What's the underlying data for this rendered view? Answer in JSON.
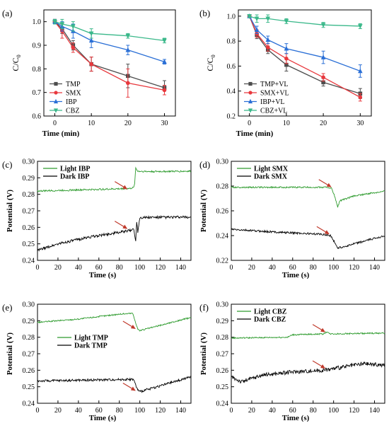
{
  "chart_data": [
    {
      "id": "a",
      "type": "line",
      "panel_label": "(a)",
      "xlabel": "Time (min)",
      "ylabel": "C/C",
      "ylabel_sub": "0",
      "xlim": [
        -3,
        33
      ],
      "ylim": [
        0.6,
        1.05
      ],
      "xticks": [
        0,
        10,
        20,
        30
      ],
      "yticks": [
        0.6,
        0.7,
        0.8,
        0.9,
        1.0
      ],
      "ytick_labels": [
        "0.6",
        "0.7",
        "0.8",
        "0.9",
        "1.0"
      ],
      "x": [
        0,
        2,
        5,
        10,
        20,
        30
      ],
      "legend_position": "bottom-left",
      "series": [
        {
          "name": "TMP",
          "color": "#4d4d4d",
          "marker": "square",
          "values": [
            1.0,
            0.97,
            0.9,
            0.82,
            0.77,
            0.72
          ],
          "errors": [
            0.01,
            0.02,
            0.02,
            0.03,
            0.05,
            0.03
          ]
        },
        {
          "name": "SMX",
          "color": "#e8383d",
          "marker": "circle",
          "values": [
            1.0,
            0.96,
            0.89,
            0.82,
            0.74,
            0.71
          ],
          "errors": [
            0.01,
            0.03,
            0.02,
            0.03,
            0.06,
            0.02
          ]
        },
        {
          "name": "IBP",
          "color": "#2a6fd6",
          "marker": "triangle-up",
          "values": [
            1.0,
            0.98,
            0.96,
            0.92,
            0.88,
            0.83
          ],
          "errors": [
            0.01,
            0.02,
            0.03,
            0.03,
            0.02,
            0.01
          ]
        },
        {
          "name": "CBZ",
          "color": "#3ab88a",
          "marker": "triangle-down",
          "values": [
            1.0,
            0.99,
            0.98,
            0.95,
            0.94,
            0.92
          ],
          "errors": [
            0.01,
            0.02,
            0.02,
            0.02,
            0.01,
            0.01
          ]
        }
      ]
    },
    {
      "id": "b",
      "type": "line",
      "panel_label": "(b)",
      "xlabel": "Time (min)",
      "ylabel": "C/C",
      "ylabel_sub": "0",
      "xlim": [
        -3,
        33
      ],
      "ylim": [
        0.2,
        1.05
      ],
      "xticks": [
        0,
        10,
        20,
        30
      ],
      "yticks": [
        0.2,
        0.4,
        0.6,
        0.8,
        1.0
      ],
      "ytick_labels": [
        "0.2",
        "0.4",
        "0.6",
        "0.8",
        "1.0"
      ],
      "x": [
        0,
        2,
        5,
        10,
        20,
        30
      ],
      "legend_position": "bottom-left",
      "series": [
        {
          "name": "TMP+VL",
          "color": "#4d4d4d",
          "marker": "square",
          "values": [
            1.0,
            0.85,
            0.73,
            0.61,
            0.47,
            0.38
          ],
          "errors": [
            0.01,
            0.03,
            0.03,
            0.05,
            0.03,
            0.04
          ]
        },
        {
          "name": "SMX+VL",
          "color": "#e8383d",
          "marker": "circle",
          "values": [
            1.0,
            0.86,
            0.75,
            0.66,
            0.51,
            0.35
          ],
          "errors": [
            0.01,
            0.03,
            0.03,
            0.04,
            0.03,
            0.03
          ]
        },
        {
          "name": "IBP+VL",
          "color": "#2a6fd6",
          "marker": "triangle-up",
          "values": [
            1.0,
            0.89,
            0.81,
            0.74,
            0.67,
            0.56
          ],
          "errors": [
            0.01,
            0.03,
            0.03,
            0.04,
            0.05,
            0.05
          ]
        },
        {
          "name": "CBZ+VL",
          "color": "#3ab88a",
          "marker": "triangle-down",
          "values": [
            1.0,
            0.98,
            0.98,
            0.96,
            0.93,
            0.92
          ],
          "errors": [
            0.01,
            0.03,
            0.03,
            0.02,
            0.02,
            0.02
          ]
        }
      ]
    },
    {
      "id": "c",
      "type": "line",
      "panel_label": "(c)",
      "xlabel": "Time (s)",
      "ylabel": "Potential (V)",
      "xlim": [
        0,
        150
      ],
      "ylim": [
        0.24,
        0.3
      ],
      "xticks": [
        0,
        20,
        40,
        60,
        80,
        100,
        120,
        140
      ],
      "yticks": [
        0.24,
        0.25,
        0.26,
        0.27,
        0.28,
        0.29,
        0.3
      ],
      "ytick_labels": [
        "0.24",
        "0.25",
        "0.26",
        "0.27",
        "0.28",
        "0.29",
        "0.30"
      ],
      "legend_position": "top-left",
      "series": [
        {
          "name": "Light IBP",
          "color": "#2e9b2e",
          "noise": 0.0005,
          "points": [
            [
              0,
              0.282
            ],
            [
              90,
              0.2835
            ],
            [
              94,
              0.284
            ],
            [
              95,
              0.287
            ],
            [
              96,
              0.296
            ],
            [
              98,
              0.294
            ],
            [
              110,
              0.2938
            ],
            [
              150,
              0.294
            ]
          ]
        },
        {
          "name": "Dark IBP",
          "color": "#000000",
          "noise": 0.0008,
          "points": [
            [
              0,
              0.246
            ],
            [
              20,
              0.25
            ],
            [
              50,
              0.254
            ],
            [
              90,
              0.258
            ],
            [
              94,
              0.259
            ],
            [
              96,
              0.252
            ],
            [
              97,
              0.264
            ],
            [
              98,
              0.257
            ],
            [
              100,
              0.266
            ],
            [
              150,
              0.2662
            ]
          ]
        }
      ],
      "arrows": [
        [
          88,
          0.283
        ],
        [
          88,
          0.259
        ]
      ]
    },
    {
      "id": "d",
      "type": "line",
      "panel_label": "(d)",
      "xlabel": "Time (s)",
      "ylabel": "Potential (V)",
      "xlim": [
        0,
        150
      ],
      "ylim": [
        0.22,
        0.3
      ],
      "xticks": [
        0,
        20,
        40,
        60,
        80,
        100,
        120,
        140
      ],
      "yticks": [
        0.22,
        0.24,
        0.26,
        0.28,
        0.3
      ],
      "ytick_labels": [
        "0.22",
        "0.24",
        "0.26",
        "0.28",
        "0.30"
      ],
      "legend_position": "top-left",
      "series": [
        {
          "name": "Light SMX",
          "color": "#2e9b2e",
          "noise": 0.0006,
          "points": [
            [
              0,
              0.279
            ],
            [
              95,
              0.279
            ],
            [
              98,
              0.278
            ],
            [
              101,
              0.272
            ],
            [
              104,
              0.263
            ],
            [
              106,
              0.268
            ],
            [
              120,
              0.272
            ],
            [
              150,
              0.276
            ]
          ]
        },
        {
          "name": "Dark SMX",
          "color": "#000000",
          "noise": 0.0008,
          "points": [
            [
              0,
              0.245
            ],
            [
              40,
              0.243
            ],
            [
              90,
              0.241
            ],
            [
              97,
              0.24
            ],
            [
              100,
              0.236
            ],
            [
              104,
              0.23
            ],
            [
              110,
              0.231
            ],
            [
              150,
              0.24
            ]
          ]
        }
      ],
      "arrows": [
        [
          98,
          0.279
        ],
        [
          96,
          0.241
        ]
      ]
    },
    {
      "id": "e",
      "type": "line",
      "panel_label": "(e)",
      "xlabel": "Time (s)",
      "ylabel": "Potential (V)",
      "xlim": [
        0,
        150
      ],
      "ylim": [
        0.24,
        0.3
      ],
      "xticks": [
        0,
        20,
        40,
        60,
        80,
        100,
        120,
        140
      ],
      "yticks": [
        0.24,
        0.25,
        0.26,
        0.27,
        0.28,
        0.29,
        0.3
      ],
      "ytick_labels": [
        "0.24",
        "0.25",
        "0.26",
        "0.27",
        "0.28",
        "0.29",
        "0.30"
      ],
      "legend_position": "middle-left",
      "series": [
        {
          "name": "Light TMP",
          "color": "#2e9b2e",
          "noise": 0.0004,
          "points": [
            [
              0,
              0.289
            ],
            [
              40,
              0.291
            ],
            [
              80,
              0.294
            ],
            [
              93,
              0.2945
            ],
            [
              98,
              0.285
            ],
            [
              100,
              0.284
            ],
            [
              150,
              0.292
            ]
          ]
        },
        {
          "name": "Dark TMP",
          "color": "#000000",
          "noise": 0.0007,
          "points": [
            [
              0,
              0.2535
            ],
            [
              90,
              0.2545
            ],
            [
              94,
              0.2545
            ],
            [
              97,
              0.249
            ],
            [
              100,
              0.247
            ],
            [
              150,
              0.256
            ]
          ]
        }
      ],
      "arrows": [
        [
          96,
          0.285
        ],
        [
          96,
          0.2475
        ]
      ]
    },
    {
      "id": "f",
      "type": "line",
      "panel_label": "(f)",
      "xlabel": "Time (s)",
      "ylabel": "Potential (V)",
      "xlim": [
        0,
        150
      ],
      "ylim": [
        0.24,
        0.3
      ],
      "xticks": [
        0,
        20,
        40,
        60,
        80,
        100,
        120,
        140
      ],
      "yticks": [
        0.24,
        0.25,
        0.26,
        0.27,
        0.28,
        0.29,
        0.3
      ],
      "ytick_labels": [
        "0.24",
        "0.25",
        "0.26",
        "0.27",
        "0.28",
        "0.29",
        "0.30"
      ],
      "legend_position": "top-left",
      "series": [
        {
          "name": "Light CBZ",
          "color": "#2e9b2e",
          "noise": 0.0004,
          "points": [
            [
              0,
              0.2795
            ],
            [
              55,
              0.28
            ],
            [
              60,
              0.2815
            ],
            [
              90,
              0.282
            ],
            [
              94,
              0.2835
            ],
            [
              96,
              0.282
            ],
            [
              150,
              0.2825
            ]
          ]
        },
        {
          "name": "Dark CBZ",
          "color": "#000000",
          "noise": 0.0012,
          "points": [
            [
              0,
              0.256
            ],
            [
              10,
              0.253
            ],
            [
              30,
              0.257
            ],
            [
              60,
              0.259
            ],
            [
              90,
              0.26
            ],
            [
              110,
              0.262
            ],
            [
              130,
              0.264
            ],
            [
              150,
              0.263
            ]
          ]
        }
      ],
      "arrows": [
        [
          92,
          0.283
        ],
        [
          92,
          0.261
        ]
      ]
    }
  ]
}
